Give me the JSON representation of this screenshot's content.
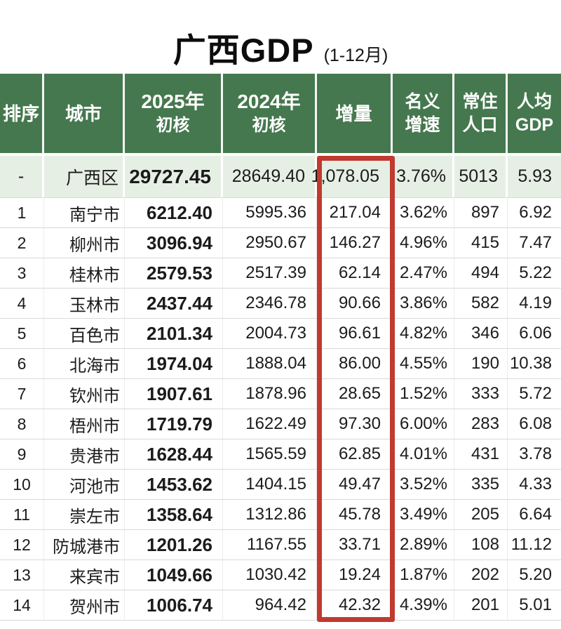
{
  "title": {
    "main": "广西GDP",
    "sub": "(1-12月)"
  },
  "colors": {
    "page_bg": "#ffffff",
    "header_bg": "#45784e",
    "header_text": "#ffffff",
    "province_bg": "#e6efe4",
    "grid_line": "#d9d9d9",
    "cell_line": "#ececec",
    "highlight_red": "#c13a2f",
    "text": "#1b1b1b"
  },
  "table": {
    "headers": [
      {
        "line1": "排序"
      },
      {
        "line1": "城市"
      },
      {
        "line1": "2025年",
        "line2": "初核"
      },
      {
        "line1": "2024年",
        "line2": "初核"
      },
      {
        "line1": "增量"
      },
      {
        "line1": "名义",
        "line2": "增速"
      },
      {
        "line1": "常住",
        "line2": "人口"
      },
      {
        "line1": "人均",
        "line2": "GDP"
      }
    ],
    "highlighted_column": "增量"
  },
  "chart_data": {
    "type": "table",
    "title": "广西GDP",
    "subtitle": "(1-12月)",
    "columns": [
      "排序",
      "城市",
      "2025年初核",
      "2024年初核",
      "增量",
      "名义增速",
      "常住人口",
      "人均GDP"
    ],
    "highlighted_column": "增量",
    "rows": [
      [
        "-",
        "广西区",
        "29727.45",
        "28649.40",
        "1,078.05",
        "3.76%",
        "5013",
        "5.93"
      ],
      [
        "1",
        "南宁市",
        "6212.40",
        "5995.36",
        "217.04",
        "3.62%",
        "897",
        "6.92"
      ],
      [
        "2",
        "柳州市",
        "3096.94",
        "2950.67",
        "146.27",
        "4.96%",
        "415",
        "7.47"
      ],
      [
        "3",
        "桂林市",
        "2579.53",
        "2517.39",
        "62.14",
        "2.47%",
        "494",
        "5.22"
      ],
      [
        "4",
        "玉林市",
        "2437.44",
        "2346.78",
        "90.66",
        "3.86%",
        "582",
        "4.19"
      ],
      [
        "5",
        "百色市",
        "2101.34",
        "2004.73",
        "96.61",
        "4.82%",
        "346",
        "6.06"
      ],
      [
        "6",
        "北海市",
        "1974.04",
        "1888.04",
        "86.00",
        "4.55%",
        "190",
        "10.38"
      ],
      [
        "7",
        "钦州市",
        "1907.61",
        "1878.96",
        "28.65",
        "1.52%",
        "333",
        "5.72"
      ],
      [
        "8",
        "梧州市",
        "1719.79",
        "1622.49",
        "97.30",
        "6.00%",
        "283",
        "6.08"
      ],
      [
        "9",
        "贵港市",
        "1628.44",
        "1565.59",
        "62.85",
        "4.01%",
        "431",
        "3.78"
      ],
      [
        "10",
        "河池市",
        "1453.62",
        "1404.15",
        "49.47",
        "3.52%",
        "335",
        "4.33"
      ],
      [
        "11",
        "崇左市",
        "1358.64",
        "1312.86",
        "45.78",
        "3.49%",
        "205",
        "6.64"
      ],
      [
        "12",
        "防城港市",
        "1201.26",
        "1167.55",
        "33.71",
        "2.89%",
        "108",
        "11.12"
      ],
      [
        "13",
        "来宾市",
        "1049.66",
        "1030.42",
        "19.24",
        "1.87%",
        "202",
        "5.20"
      ],
      [
        "14",
        "贺州市",
        "1006.74",
        "964.42",
        "42.32",
        "4.39%",
        "201",
        "5.01"
      ]
    ]
  }
}
